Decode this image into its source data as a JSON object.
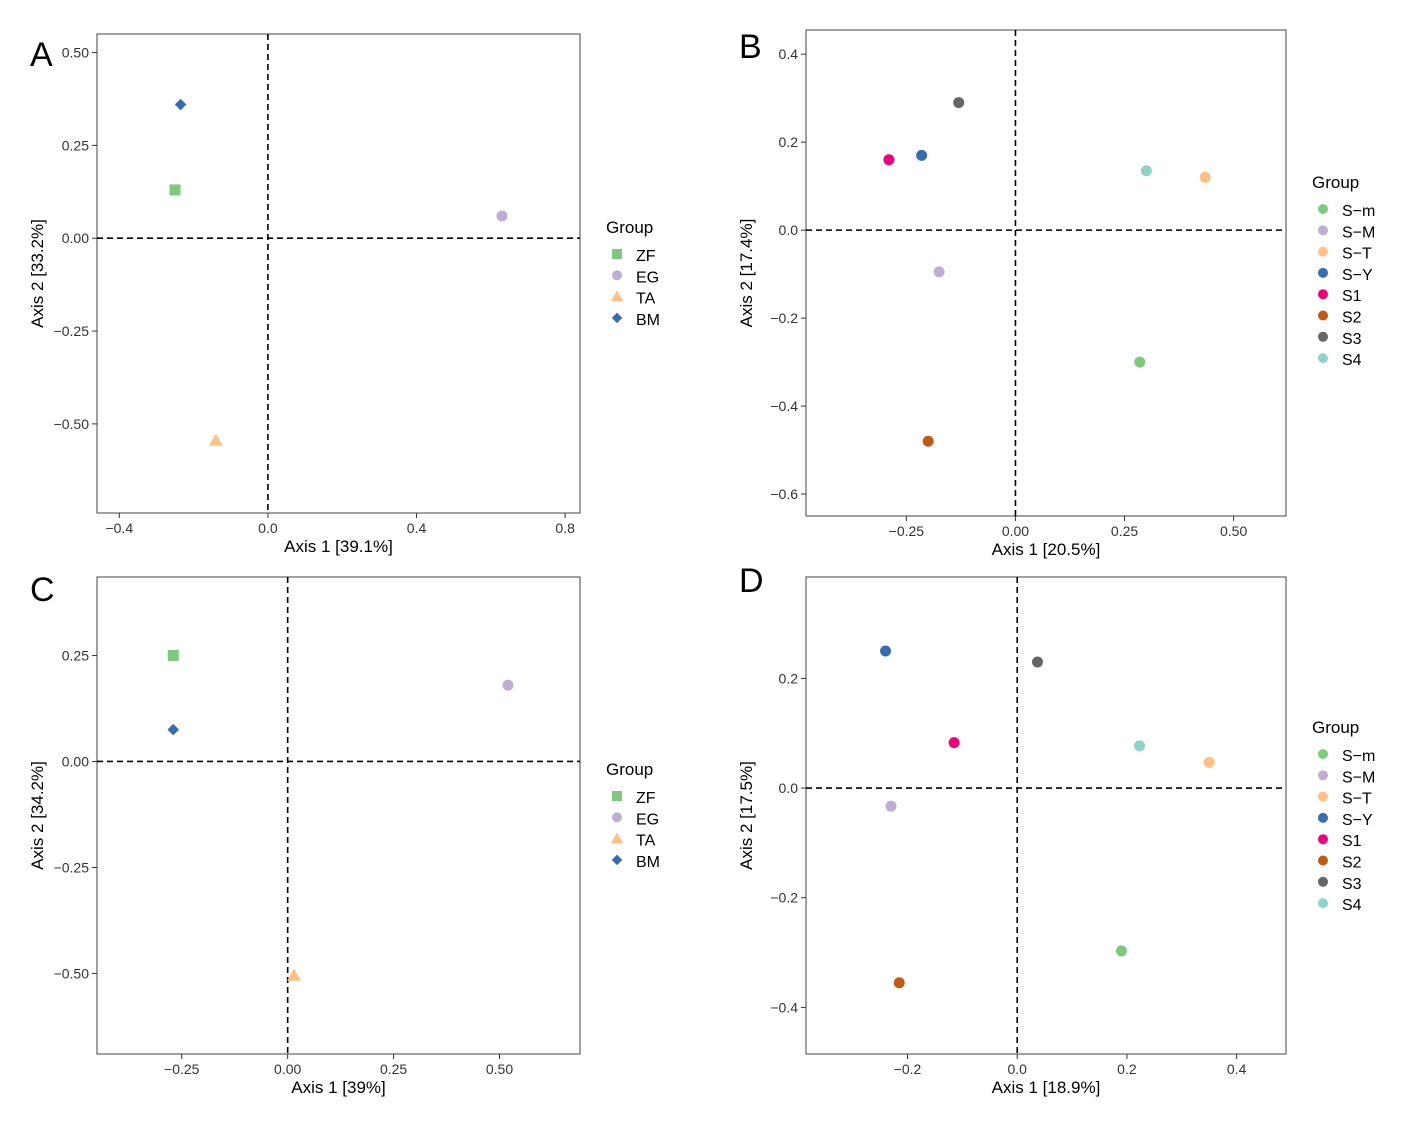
{
  "figure": {
    "panels": [
      "A",
      "B",
      "C",
      "D"
    ]
  },
  "chart_data": [
    {
      "panel": "A",
      "type": "scatter",
      "xlabel": "Axis 1 [39.1%]",
      "ylabel": "Axis 2 [33.2%]",
      "xlim": [
        -0.46,
        0.84
      ],
      "ylim": [
        -0.74,
        0.55
      ],
      "xticks": [
        -0.4,
        0.0,
        0.4,
        0.8
      ],
      "xtick_labels": [
        "−0.4",
        "0.0",
        "0.4",
        "0.8"
      ],
      "yticks": [
        0.5,
        0.25,
        0.0,
        -0.25,
        -0.5
      ],
      "ytick_labels": [
        "0.50",
        "0.25",
        "0.00",
        "−0.25",
        "−0.50"
      ],
      "reference_lines": {
        "x": 0,
        "y": 0,
        "style": "dashed"
      },
      "grid": false,
      "legend": {
        "title": "Group",
        "position": "right",
        "items": [
          {
            "label": "ZF",
            "color": "#7fc97f",
            "shape": "square"
          },
          {
            "label": "EG",
            "color": "#beaed4",
            "shape": "circle"
          },
          {
            "label": "TA",
            "color": "#fdc086",
            "shape": "triangle"
          },
          {
            "label": "BM",
            "color": "#386cb0",
            "shape": "diamond"
          }
        ]
      },
      "series": [
        {
          "name": "ZF",
          "x": -0.25,
          "y": 0.13
        },
        {
          "name": "EG",
          "x": 0.63,
          "y": 0.06
        },
        {
          "name": "TA",
          "x": -0.14,
          "y": -0.545
        },
        {
          "name": "BM",
          "x": -0.235,
          "y": 0.36
        }
      ]
    },
    {
      "panel": "B",
      "type": "scatter",
      "xlabel": "Axis 1 [20.5%]",
      "ylabel": "Axis 2 [17.4%]",
      "xlim": [
        -0.48,
        0.62
      ],
      "ylim": [
        -0.65,
        0.455
      ],
      "xticks": [
        -0.25,
        0.0,
        0.25,
        0.5
      ],
      "xtick_labels": [
        "−0.25",
        "0.00",
        "0.25",
        "0.50"
      ],
      "yticks": [
        0.4,
        0.2,
        0.0,
        -0.2,
        -0.4,
        -0.6
      ],
      "ytick_labels": [
        "0.4",
        "0.2",
        "0.0",
        "−0.2",
        "−0.4",
        "−0.6"
      ],
      "reference_lines": {
        "x": 0,
        "y": 0,
        "style": "dashed"
      },
      "grid": false,
      "legend": {
        "title": "Group",
        "position": "right",
        "items": [
          {
            "label": "S−m",
            "color": "#7fc97f",
            "shape": "circle"
          },
          {
            "label": "S−M",
            "color": "#beaed4",
            "shape": "circle"
          },
          {
            "label": "S−T",
            "color": "#fdc086",
            "shape": "circle"
          },
          {
            "label": "S−Y",
            "color": "#386cb0",
            "shape": "circle"
          },
          {
            "label": "S1",
            "color": "#f0027f",
            "shape": "circle"
          },
          {
            "label": "S2",
            "color": "#bf5b17",
            "shape": "circle"
          },
          {
            "label": "S3",
            "color": "#666666",
            "shape": "circle"
          },
          {
            "label": "S4",
            "color": "#8dd3c7",
            "shape": "circle"
          }
        ]
      },
      "series": [
        {
          "name": "S−m",
          "x": 0.285,
          "y": -0.3
        },
        {
          "name": "S−M",
          "x": -0.175,
          "y": -0.095
        },
        {
          "name": "S−T",
          "x": 0.435,
          "y": 0.12
        },
        {
          "name": "S−Y",
          "x": -0.215,
          "y": 0.17
        },
        {
          "name": "S1",
          "x": -0.29,
          "y": 0.16
        },
        {
          "name": "S2",
          "x": -0.2,
          "y": -0.48
        },
        {
          "name": "S3",
          "x": -0.13,
          "y": 0.29
        },
        {
          "name": "S4",
          "x": 0.3,
          "y": 0.135
        }
      ]
    },
    {
      "panel": "C",
      "type": "scatter",
      "xlabel": "Axis 1 [39%]",
      "ylabel": "Axis 2 [34.2%]",
      "xlim": [
        -0.45,
        0.69
      ],
      "ylim": [
        -0.69,
        0.435
      ],
      "xticks": [
        -0.25,
        0.0,
        0.25,
        0.5
      ],
      "xtick_labels": [
        "−0.25",
        "0.00",
        "0.25",
        "0.50"
      ],
      "yticks": [
        0.25,
        0.0,
        -0.25,
        -0.5
      ],
      "ytick_labels": [
        "0.25",
        "0.00",
        "−0.25",
        "−0.50"
      ],
      "reference_lines": {
        "x": 0,
        "y": 0,
        "style": "dashed"
      },
      "grid": false,
      "legend": {
        "title": "Group",
        "position": "right",
        "items": [
          {
            "label": "ZF",
            "color": "#7fc97f",
            "shape": "square"
          },
          {
            "label": "EG",
            "color": "#beaed4",
            "shape": "circle"
          },
          {
            "label": "TA",
            "color": "#fdc086",
            "shape": "triangle"
          },
          {
            "label": "BM",
            "color": "#386cb0",
            "shape": "diamond"
          }
        ]
      },
      "series": [
        {
          "name": "ZF",
          "x": -0.27,
          "y": 0.25
        },
        {
          "name": "EG",
          "x": 0.52,
          "y": 0.18
        },
        {
          "name": "TA",
          "x": 0.015,
          "y": -0.505
        },
        {
          "name": "BM",
          "x": -0.27,
          "y": 0.075
        }
      ]
    },
    {
      "panel": "D",
      "type": "scatter",
      "xlabel": "Axis 1 [18.9%]",
      "ylabel": "Axis 2 [17.5%]",
      "xlim": [
        -0.385,
        0.49
      ],
      "ylim": [
        -0.485,
        0.385
      ],
      "xticks": [
        -0.2,
        0.0,
        0.2,
        0.4
      ],
      "xtick_labels": [
        "−0.2",
        "0.0",
        "0.2",
        "0.4"
      ],
      "yticks": [
        0.2,
        0.0,
        -0.2,
        -0.4
      ],
      "ytick_labels": [
        "0.2",
        "0.0",
        "−0.2",
        "−0.4"
      ],
      "reference_lines": {
        "x": 0,
        "y": 0,
        "style": "dashed"
      },
      "grid": false,
      "legend": {
        "title": "Group",
        "position": "right",
        "items": [
          {
            "label": "S−m",
            "color": "#7fc97f",
            "shape": "circle"
          },
          {
            "label": "S−M",
            "color": "#beaed4",
            "shape": "circle"
          },
          {
            "label": "S−T",
            "color": "#fdc086",
            "shape": "circle"
          },
          {
            "label": "S−Y",
            "color": "#386cb0",
            "shape": "circle"
          },
          {
            "label": "S1",
            "color": "#f0027f",
            "shape": "circle"
          },
          {
            "label": "S2",
            "color": "#bf5b17",
            "shape": "circle"
          },
          {
            "label": "S3",
            "color": "#666666",
            "shape": "circle"
          },
          {
            "label": "S4",
            "color": "#8dd3c7",
            "shape": "circle"
          }
        ]
      },
      "series": [
        {
          "name": "S−m",
          "x": 0.19,
          "y": -0.297
        },
        {
          "name": "S−M",
          "x": -0.23,
          "y": -0.033
        },
        {
          "name": "S−T",
          "x": 0.35,
          "y": 0.047
        },
        {
          "name": "S−Y",
          "x": -0.24,
          "y": 0.25
        },
        {
          "name": "S1",
          "x": -0.115,
          "y": 0.083
        },
        {
          "name": "S2",
          "x": -0.215,
          "y": -0.355
        },
        {
          "name": "S3",
          "x": 0.037,
          "y": 0.23
        },
        {
          "name": "S4",
          "x": 0.223,
          "y": 0.077
        }
      ]
    }
  ]
}
